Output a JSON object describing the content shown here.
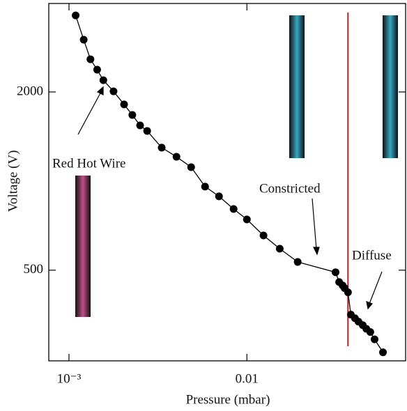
{
  "chart_data": {
    "type": "line",
    "x_label": "Pressure (mbar)",
    "y_label": "Voltage (V)",
    "xscale": "log",
    "yscale": "log",
    "xlim": [
      0.00077,
      0.078
    ],
    "ylim": [
      247,
      3980
    ],
    "xticks": [
      {
        "value": 0.001,
        "label": "10⁻³"
      },
      0.01
    ],
    "yticks": [
      500,
      2000
    ],
    "divider_x": 0.037,
    "divider_color": "#b22222",
    "annotations": [
      "Red Hot Wire",
      "Constricted",
      "Diffuse"
    ],
    "x": [
      0.00109,
      0.00121,
      0.00132,
      0.00144,
      0.00156,
      0.00178,
      0.00204,
      0.00227,
      0.00251,
      0.00275,
      0.00332,
      0.00402,
      0.00486,
      0.00582,
      0.00697,
      0.00842,
      0.01,
      0.0124,
      0.0153,
      0.0193,
      0.0315,
      0.033,
      0.0345,
      0.0354,
      0.037,
      0.0384,
      0.0405,
      0.0424,
      0.0448,
      0.0469,
      0.0494,
      0.0522,
      0.0582
    ],
    "series": [
      {
        "color": "#000000",
        "values": [
          3628,
          3002,
          2579,
          2378,
          2192,
          2009,
          1815,
          1672,
          1542,
          1477,
          1297,
          1208,
          1114,
          958,
          888,
          805,
          742,
          655,
          591,
          533,
          492,
          456,
          444,
          435,
          421,
          354,
          344,
          335,
          326,
          317,
          309,
          292,
          264
        ]
      }
    ]
  }
}
